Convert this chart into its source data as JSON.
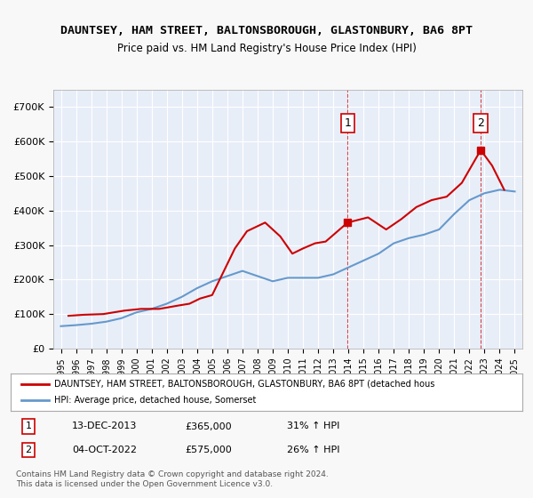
{
  "title": "DAUNTSEY, HAM STREET, BALTONSBOROUGH, GLASTONBURY, BA6 8PT",
  "subtitle": "Price paid vs. HM Land Registry's House Price Index (HPI)",
  "ylabel": "",
  "bg_color": "#f0f4ff",
  "plot_bg": "#e8eef8",
  "grid_color": "#ffffff",
  "red_line_color": "#cc0000",
  "blue_line_color": "#6699cc",
  "ylim": [
    0,
    750000
  ],
  "yticks": [
    0,
    100000,
    200000,
    300000,
    400000,
    500000,
    600000,
    700000
  ],
  "ytick_labels": [
    "£0",
    "£100K",
    "£200K",
    "£300K",
    "£400K",
    "£500K",
    "£600K",
    "£700K"
  ],
  "years": [
    1995,
    1996,
    1997,
    1998,
    1999,
    2000,
    2001,
    2002,
    2003,
    2004,
    2005,
    2006,
    2007,
    2008,
    2009,
    2010,
    2011,
    2012,
    2013,
    2014,
    2015,
    2016,
    2017,
    2018,
    2019,
    2020,
    2021,
    2022,
    2023,
    2024,
    2025
  ],
  "hpi_values": [
    65000,
    68000,
    72000,
    78000,
    88000,
    105000,
    115000,
    130000,
    150000,
    175000,
    195000,
    210000,
    225000,
    210000,
    195000,
    205000,
    205000,
    205000,
    215000,
    235000,
    255000,
    275000,
    305000,
    320000,
    330000,
    345000,
    390000,
    430000,
    450000,
    460000,
    455000
  ],
  "price_paid_dates": [
    1995.5,
    1996.5,
    1997.8,
    1999.2,
    2000.3,
    2001.5,
    2002.8,
    2003.5,
    2004.2,
    2005.0,
    2006.5,
    2007.3,
    2008.5,
    2009.5,
    2010.3,
    2011.0,
    2011.8,
    2012.5,
    2013.95,
    2015.3,
    2016.5,
    2017.5,
    2018.5,
    2019.5,
    2020.5,
    2021.5,
    2022.75,
    2023.5,
    2024.3
  ],
  "price_paid_values": [
    95000,
    98000,
    100000,
    110000,
    115000,
    115000,
    125000,
    130000,
    145000,
    155000,
    290000,
    340000,
    365000,
    325000,
    275000,
    290000,
    305000,
    310000,
    365000,
    380000,
    345000,
    375000,
    410000,
    430000,
    440000,
    480000,
    575000,
    530000,
    460000
  ],
  "sale1_x": 2013.95,
  "sale1_y": 365000,
  "sale1_label": "1",
  "sale2_x": 2022.75,
  "sale2_y": 575000,
  "sale2_label": "2",
  "legend_line1": "DAUNTSEY, HAM STREET, BALTONSBOROUGH, GLASTONBURY, BA6 8PT (detached hous",
  "legend_line2": "HPI: Average price, detached house, Somerset",
  "table_data": [
    [
      "1",
      "13-DEC-2013",
      "£365,000",
      "31% ↑ HPI"
    ],
    [
      "2",
      "04-OCT-2022",
      "£575,000",
      "26% ↑ HPI"
    ]
  ],
  "footer": "Contains HM Land Registry data © Crown copyright and database right 2024.\nThis data is licensed under the Open Government Licence v3.0.",
  "xlim": [
    1994.5,
    2025.5
  ]
}
